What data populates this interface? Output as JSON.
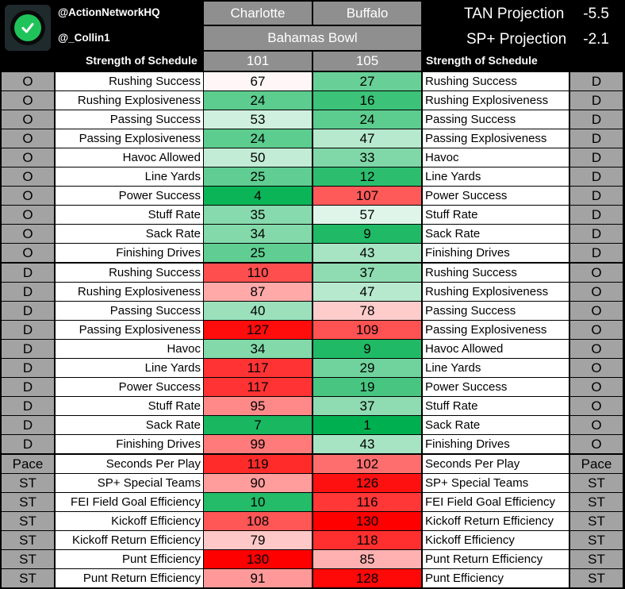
{
  "header": {
    "handle1": "@ActionNetworkHQ",
    "handle2": "@_Collin1",
    "team_left": "Charlotte",
    "team_right": "Buffalo",
    "game": "Bahamas Bowl",
    "tan_label": "TAN Projection",
    "tan_value": "-5.5",
    "sp_label": "SP+ Projection",
    "sp_value": "-2.1",
    "sos_label_left": "Strength of Schedule",
    "sos_left": "101",
    "sos_right": "105",
    "sos_label_right": "Strength of Schedule"
  },
  "logo": {
    "icon": "check-circle-icon",
    "color": "#20c35a"
  },
  "rows": [
    {
      "ls": "O",
      "ll": "Rushing Success",
      "lv": "67",
      "rv": "27",
      "rl": "Rushing Success",
      "rs": "D"
    },
    {
      "ls": "O",
      "ll": "Rushing Explosiveness",
      "lv": "24",
      "rv": "16",
      "rl": "Rushing Explosiveness",
      "rs": "D"
    },
    {
      "ls": "O",
      "ll": "Passing Success",
      "lv": "53",
      "rv": "24",
      "rl": "Passing Success",
      "rs": "D"
    },
    {
      "ls": "O",
      "ll": "Passing Explosiveness",
      "lv": "24",
      "rv": "47",
      "rl": "Passing Explosiveness",
      "rs": "D"
    },
    {
      "ls": "O",
      "ll": "Havoc Allowed",
      "lv": "50",
      "rv": "33",
      "rl": "Havoc",
      "rs": "D"
    },
    {
      "ls": "O",
      "ll": "Line Yards",
      "lv": "25",
      "rv": "12",
      "rl": "Line Yards",
      "rs": "D"
    },
    {
      "ls": "O",
      "ll": "Power Success",
      "lv": "4",
      "rv": "107",
      "rl": "Power Success",
      "rs": "D"
    },
    {
      "ls": "O",
      "ll": "Stuff Rate",
      "lv": "35",
      "rv": "57",
      "rl": "Stuff Rate",
      "rs": "D"
    },
    {
      "ls": "O",
      "ll": "Sack Rate",
      "lv": "34",
      "rv": "9",
      "rl": "Sack Rate",
      "rs": "D"
    },
    {
      "ls": "O",
      "ll": "Finishing Drives",
      "lv": "25",
      "rv": "43",
      "rl": "Finishing Drives",
      "rs": "D"
    },
    {
      "ls": "D",
      "ll": "Rushing Success",
      "lv": "110",
      "rv": "37",
      "rl": "Rushing Success",
      "rs": "O"
    },
    {
      "ls": "D",
      "ll": "Rushing Explosiveness",
      "lv": "87",
      "rv": "47",
      "rl": "Rushing Explosiveness",
      "rs": "O"
    },
    {
      "ls": "D",
      "ll": "Passing Success",
      "lv": "40",
      "rv": "78",
      "rl": "Passing Success",
      "rs": "O"
    },
    {
      "ls": "D",
      "ll": "Passing Explosiveness",
      "lv": "127",
      "rv": "109",
      "rl": "Passing Explosiveness",
      "rs": "O"
    },
    {
      "ls": "D",
      "ll": "Havoc",
      "lv": "34",
      "rv": "9",
      "rl": "Havoc Allowed",
      "rs": "O"
    },
    {
      "ls": "D",
      "ll": "Line Yards",
      "lv": "117",
      "rv": "29",
      "rl": "Line Yards",
      "rs": "O"
    },
    {
      "ls": "D",
      "ll": "Power Success",
      "lv": "117",
      "rv": "19",
      "rl": "Power Success",
      "rs": "O"
    },
    {
      "ls": "D",
      "ll": "Stuff Rate",
      "lv": "95",
      "rv": "37",
      "rl": "Stuff Rate",
      "rs": "O"
    },
    {
      "ls": "D",
      "ll": "Sack Rate",
      "lv": "7",
      "rv": "1",
      "rl": "Sack Rate",
      "rs": "O"
    },
    {
      "ls": "D",
      "ll": "Finishing Drives",
      "lv": "99",
      "rv": "43",
      "rl": "Finishing Drives",
      "rs": "O"
    },
    {
      "ls": "Pace",
      "ll": "Seconds Per Play",
      "lv": "119",
      "rv": "102",
      "rl": "Seconds Per Play",
      "rs": "Pace"
    },
    {
      "ls": "ST",
      "ll": "SP+ Special Teams",
      "lv": "90",
      "rv": "126",
      "rl": "SP+ Special Teams",
      "rs": "ST"
    },
    {
      "ls": "ST",
      "ll": "FEI Field Goal Efficiency",
      "lv": "10",
      "rv": "116",
      "rl": "FEI Field Goal Efficiency",
      "rs": "ST"
    },
    {
      "ls": "ST",
      "ll": "Kickoff Efficiency",
      "lv": "108",
      "rv": "130",
      "rl": "Kickoff Return Efficiency",
      "rs": "ST"
    },
    {
      "ls": "ST",
      "ll": "Kickoff Return Efficiency",
      "lv": "79",
      "rv": "118",
      "rl": "Kickoff Efficiency",
      "rs": "ST"
    },
    {
      "ls": "ST",
      "ll": "Punt Efficiency",
      "lv": "130",
      "rv": "85",
      "rl": "Punt Return Efficiency",
      "rs": "ST"
    },
    {
      "ls": "ST",
      "ll": "Punt Return Efficiency",
      "lv": "91",
      "rv": "128",
      "rl": "Punt Efficiency",
      "rs": "ST"
    }
  ],
  "colors": {
    "header_bg": "#000000",
    "team_bg": "#8f8f8f",
    "side_bg": "#a3a3a3",
    "best_green": "#00b050",
    "worst_red": "#ff0000"
  }
}
